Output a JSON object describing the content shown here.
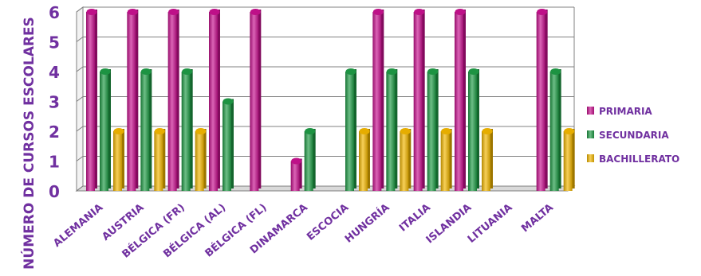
{
  "chart_data": {
    "type": "bar",
    "title": "",
    "xlabel": "",
    "ylabel": "NÚMERO DE CURSOS ESCOLARES",
    "ylim": [
      0,
      6
    ],
    "yticks": [
      "0",
      "1",
      "2",
      "3",
      "4",
      "5",
      "6"
    ],
    "grid": true,
    "legend_position": "right",
    "categories": [
      "ALEMANIA",
      "AUSTRIA",
      "BÉLGICA (FR)",
      "BÉLGICA (AL)",
      "BÉLGICA (FL)",
      "DINAMARCA",
      "ESCOCIA",
      "HUNGRÍA",
      "ITALIA",
      "ISLANDIA",
      "LITUANIA",
      "MALTA"
    ],
    "series": [
      {
        "name": "PRIMARIA",
        "color": "#c8118f",
        "values": [
          6,
          6,
          6,
          6,
          6,
          1,
          0,
          6,
          6,
          6,
          0,
          6
        ]
      },
      {
        "name": "SECUNDARIA",
        "color": "#1e9b45",
        "values": [
          4,
          4,
          4,
          3,
          0,
          2,
          4,
          4,
          4,
          4,
          0,
          4
        ]
      },
      {
        "name": "BACHILLERATO",
        "color": "#f2b600",
        "values": [
          2,
          2,
          2,
          0,
          0,
          0,
          2,
          2,
          2,
          2,
          0,
          2
        ]
      }
    ]
  }
}
